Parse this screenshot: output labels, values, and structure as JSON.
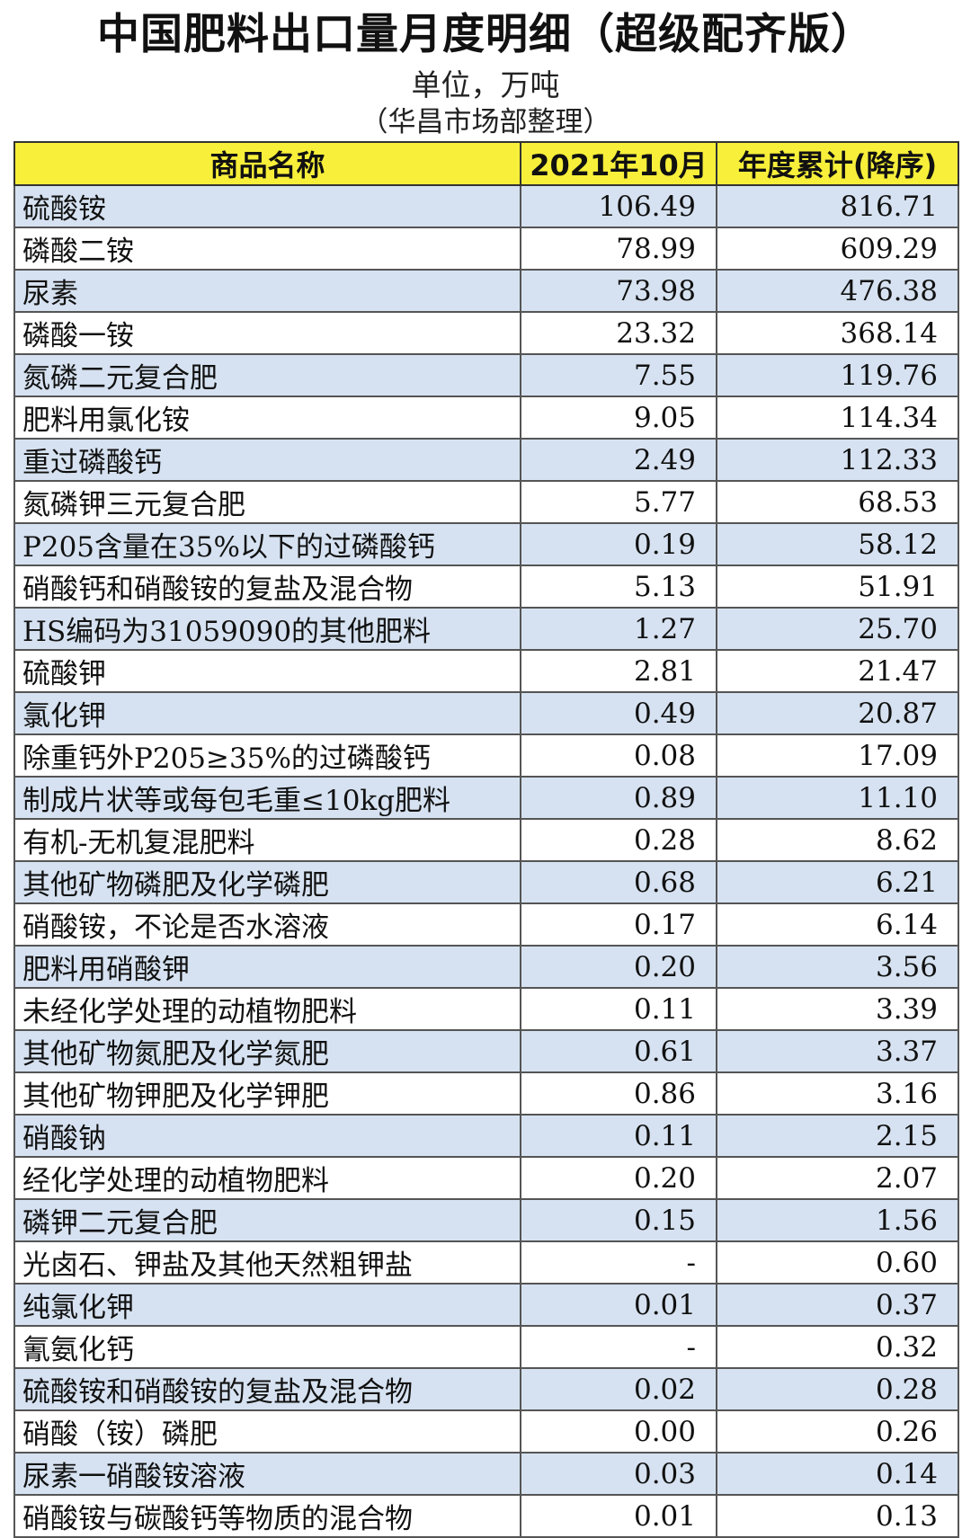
{
  "title": "中国肥料出口量月度明细（超级配齐版）",
  "unit": "单位，万吨",
  "source": "（华昌市场部整理）",
  "table": {
    "headers": [
      "商品名称",
      "2021年10月",
      "年度累计(降序)"
    ],
    "rows": [
      [
        "硫酸铵",
        "106.49",
        "816.71"
      ],
      [
        "磷酸二铵",
        "78.99",
        "609.29"
      ],
      [
        "尿素",
        "73.98",
        "476.38"
      ],
      [
        "磷酸一铵",
        "23.32",
        "368.14"
      ],
      [
        "氮磷二元复合肥",
        "7.55",
        "119.76"
      ],
      [
        "肥料用氯化铵",
        "9.05",
        "114.34"
      ],
      [
        "重过磷酸钙",
        "2.49",
        "112.33"
      ],
      [
        "氮磷钾三元复合肥",
        "5.77",
        "68.53"
      ],
      [
        "P205含量在35%以下的过磷酸钙",
        "0.19",
        "58.12"
      ],
      [
        "硝酸钙和硝酸铵的复盐及混合物",
        "5.13",
        "51.91"
      ],
      [
        "HS编码为31059090的其他肥料",
        "1.27",
        "25.70"
      ],
      [
        "硫酸钾",
        "2.81",
        "21.47"
      ],
      [
        "氯化钾",
        "0.49",
        "20.87"
      ],
      [
        "除重钙外P205≥35%的过磷酸钙",
        "0.08",
        "17.09"
      ],
      [
        "制成片状等或每包毛重≤10kg肥料",
        "0.89",
        "11.10"
      ],
      [
        "有机-无机复混肥料",
        "0.28",
        "8.62"
      ],
      [
        "其他矿物磷肥及化学磷肥",
        "0.68",
        "6.21"
      ],
      [
        "硝酸铵，不论是否水溶液",
        "0.17",
        "6.14"
      ],
      [
        "肥料用硝酸钾",
        "0.20",
        "3.56"
      ],
      [
        "未经化学处理的动植物肥料",
        "0.11",
        "3.39"
      ],
      [
        "其他矿物氮肥及化学氮肥",
        "0.61",
        "3.37"
      ],
      [
        "其他矿物钾肥及化学钾肥",
        "0.86",
        "3.16"
      ],
      [
        "硝酸钠",
        "0.11",
        "2.15"
      ],
      [
        "经化学处理的动植物肥料",
        "0.20",
        "2.07"
      ],
      [
        "磷钾二元复合肥",
        "0.15",
        "1.56"
      ],
      [
        "光卤石、钾盐及其他天然粗钾盐",
        "-",
        "0.60"
      ],
      [
        "纯氯化钾",
        "0.01",
        "0.37"
      ],
      [
        "氰氨化钙",
        "-",
        "0.32"
      ],
      [
        "硫酸铵和硝酸铵的复盐及混合物",
        "0.02",
        "0.28"
      ],
      [
        "硝酸（铵）磷肥",
        "0.00",
        "0.26"
      ],
      [
        "尿素一硝酸铵溶液",
        "0.03",
        "0.14"
      ],
      [
        "硝酸铵与碳酸钙等物质的混合物",
        "0.01",
        "0.13"
      ]
    ]
  },
  "colors": {
    "header_bg": "#f7ef3a",
    "row_alt_bg": "#d6e2f1",
    "row_bg": "#ffffff"
  }
}
